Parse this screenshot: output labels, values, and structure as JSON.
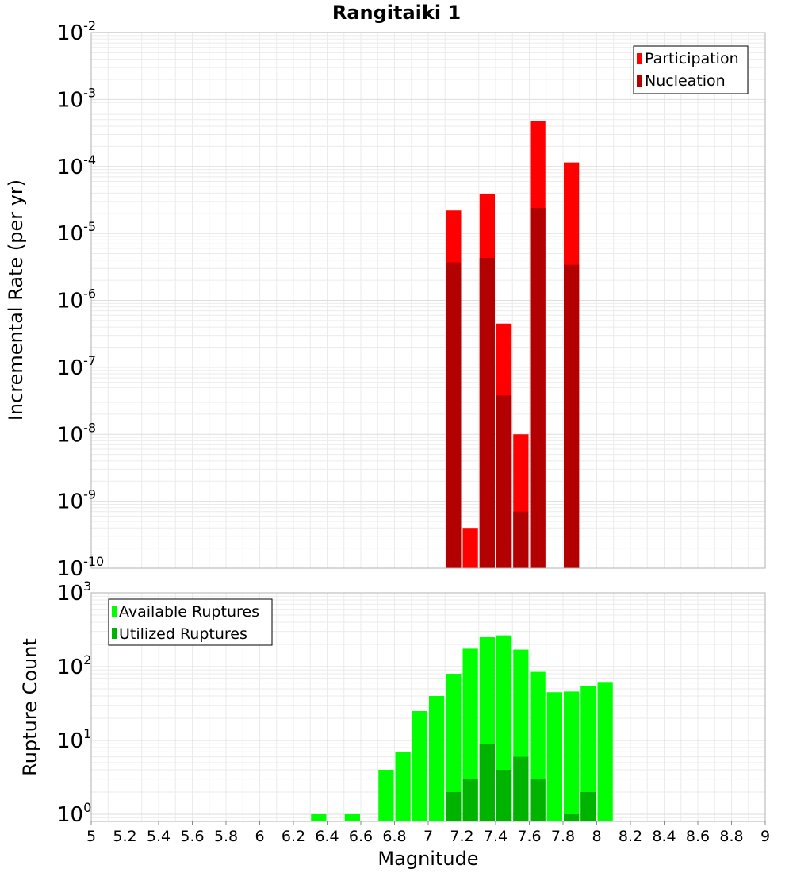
{
  "chart_data": [
    {
      "type": "bar",
      "title": "Rangitaiki 1",
      "xlabel": "",
      "ylabel": "Incremental Rate (per yr)",
      "xlim": [
        5,
        9
      ],
      "ylim": [
        1e-10,
        0.01
      ],
      "yscale": "log",
      "grid": true,
      "legend_position": "top-right",
      "x": [
        7.15,
        7.25,
        7.35,
        7.45,
        7.55,
        7.65,
        7.85
      ],
      "series": [
        {
          "name": "Participation",
          "color": "#ff0000",
          "values": [
            2.2e-05,
            4e-10,
            3.9e-05,
            4.5e-07,
            1e-08,
            0.00048,
            0.000115
          ]
        },
        {
          "name": "Nucleation",
          "color": "#b30000",
          "values": [
            3.7e-06,
            null,
            4.3e-06,
            3.8e-08,
            7e-10,
            2.4e-05,
            3.4e-06
          ]
        }
      ],
      "y_tick_labels": [
        {
          "base": "10",
          "exp": "-2"
        },
        {
          "base": "10",
          "exp": "-3"
        },
        {
          "base": "10",
          "exp": "-4"
        },
        {
          "base": "10",
          "exp": "-5"
        },
        {
          "base": "10",
          "exp": "-6"
        },
        {
          "base": "10",
          "exp": "-7"
        },
        {
          "base": "10",
          "exp": "-8"
        },
        {
          "base": "10",
          "exp": "-9"
        },
        {
          "base": "10",
          "exp": "-10"
        }
      ]
    },
    {
      "type": "bar",
      "title": "",
      "xlabel": "Magnitude",
      "ylabel": "Rupture Count",
      "xlim": [
        5,
        9
      ],
      "ylim": [
        0.8,
        1000
      ],
      "yscale": "log",
      "grid": true,
      "legend_position": "top-left",
      "x": [
        6.35,
        6.55,
        6.75,
        6.85,
        6.95,
        7.05,
        7.15,
        7.25,
        7.35,
        7.45,
        7.55,
        7.65,
        7.75,
        7.85,
        7.95,
        8.05
      ],
      "series": [
        {
          "name": "Available Ruptures",
          "color": "#00ff00",
          "values": [
            1,
            1,
            4,
            7,
            25,
            40,
            80,
            175,
            250,
            265,
            170,
            85,
            45,
            46,
            55,
            62
          ]
        },
        {
          "name": "Utilized Ruptures",
          "color": "#00b300",
          "values": [
            null,
            null,
            null,
            null,
            null,
            null,
            2,
            3,
            9,
            4,
            6,
            3,
            null,
            1,
            2,
            null
          ]
        }
      ],
      "x_ticks": [
        "5",
        "5.2",
        "5.4",
        "5.6",
        "5.8",
        "6",
        "6.2",
        "6.4",
        "6.6",
        "6.8",
        "7",
        "7.2",
        "7.4",
        "7.6",
        "7.8",
        "8",
        "8.2",
        "8.4",
        "8.6",
        "8.8",
        "9"
      ],
      "y_tick_labels": [
        {
          "base": "10",
          "exp": "3"
        },
        {
          "base": "10",
          "exp": "2"
        },
        {
          "base": "10",
          "exp": "1"
        },
        {
          "base": "10",
          "exp": "0"
        }
      ]
    }
  ]
}
